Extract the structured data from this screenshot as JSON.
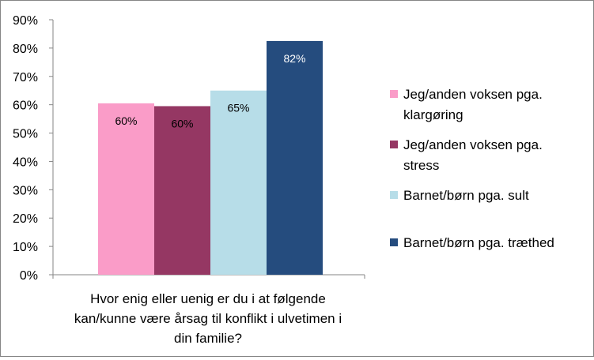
{
  "chart_data": {
    "type": "bar",
    "categories": [
      "Hvor enig eller uenig er du i at følgende kan/kunne være årsag til konflikt i ulvetimen i din familie?"
    ],
    "xlabel_lines": [
      "Hvor enig eller uenig er du i at følgende",
      "kan/kunne være årsag til konflikt i ulvetimen i",
      "din familie?"
    ],
    "ylim": [
      0,
      0.9
    ],
    "yticks": [
      "0%",
      "10%",
      "20%",
      "30%",
      "40%",
      "50%",
      "60%",
      "70%",
      "80%",
      "90%"
    ],
    "grid": false,
    "legend_position": "right",
    "series": [
      {
        "name": "Jeg/anden voksen pga. klargøring",
        "legend_lines": [
          "Jeg/anden voksen pga.",
          "klargøring"
        ],
        "values": [
          0.605
        ],
        "label": "60%",
        "color": "#fa9cc8"
      },
      {
        "name": "Jeg/anden voksen pga. stress",
        "legend_lines": [
          "Jeg/anden voksen pga.",
          "stress"
        ],
        "values": [
          0.595
        ],
        "label": "60%",
        "color": "#953763"
      },
      {
        "name": "Barnet/børn pga. sult",
        "legend_lines": [
          "Barnet/børn pga. sult"
        ],
        "values": [
          0.65
        ],
        "label": "65%",
        "color": "#b7dde8"
      },
      {
        "name": "Barnet/børn pga. træthed",
        "legend_lines": [
          "Barnet/børn pga. træthed"
        ],
        "values": [
          0.825
        ],
        "label": "82%",
        "color": "#254c7e"
      }
    ]
  }
}
